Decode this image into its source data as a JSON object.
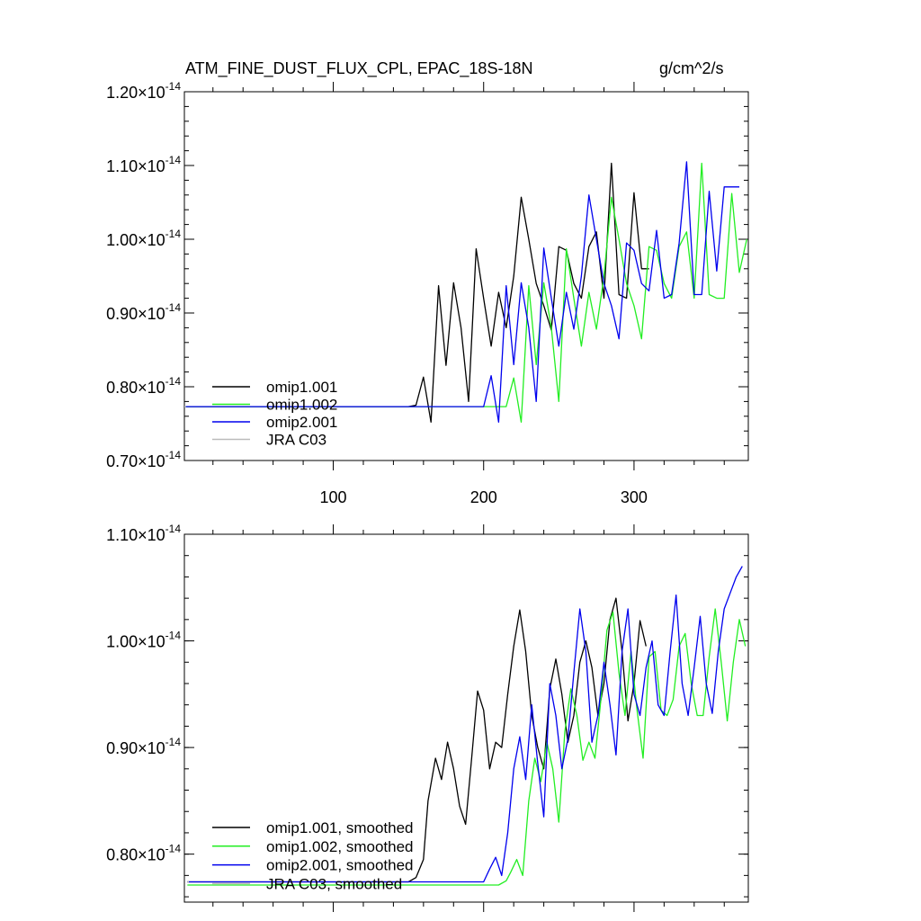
{
  "chart_data": [
    {
      "type": "line",
      "panel": "top",
      "title": "ATM_FINE_DUST_FLUX_CPL, EPAC_18S-18N",
      "units": "g/cm^2/s",
      "xlim": [
        1,
        376
      ],
      "ylim": [
        0.7,
        1.2
      ],
      "exponent": "-14",
      "yticks": [
        "0.70",
        "0.80",
        "0.90",
        "1.00",
        "1.10",
        "1.20"
      ],
      "yticks_values": [
        0.7,
        0.8,
        0.9,
        1.0,
        1.1,
        1.2
      ],
      "xticks": [
        "100",
        "200",
        "300"
      ],
      "xticks_values": [
        100,
        200,
        300
      ],
      "legend": [
        "omip1.001",
        "omip1.002",
        "omip2.001",
        "JRA C03"
      ],
      "colors": [
        "#000000",
        "#22ee22",
        "#0000ee",
        "#bbbbbb"
      ],
      "series": [
        {
          "name": "omip1.001",
          "x": [
            1,
            150,
            155,
            160,
            165,
            170,
            175,
            180,
            185,
            190,
            195,
            200,
            205,
            210,
            215,
            220,
            225,
            230,
            235,
            240,
            245,
            250,
            255,
            260,
            265,
            270,
            275,
            280,
            285,
            290,
            295,
            300,
            305,
            310
          ],
          "y": [
            0.773,
            0.773,
            0.775,
            0.813,
            0.752,
            0.937,
            0.829,
            0.941,
            0.88,
            0.78,
            0.987,
            0.92,
            0.855,
            0.928,
            0.88,
            0.95,
            1.057,
            1.0,
            0.94,
            0.91,
            0.877,
            0.99,
            0.985,
            0.94,
            0.92,
            0.99,
            1.01,
            0.92,
            1.103,
            0.925,
            0.92,
            1.063,
            0.96,
            0.96
          ]
        },
        {
          "name": "omip1.002",
          "x": [
            1,
            200,
            205,
            210,
            215,
            220,
            225,
            230,
            235,
            240,
            245,
            250,
            255,
            260,
            265,
            270,
            275,
            280,
            285,
            290,
            295,
            300,
            305,
            310,
            315,
            320,
            325,
            330,
            335,
            340,
            345,
            350,
            355,
            360,
            365,
            370,
            375
          ],
          "y": [
            0.773,
            0.773,
            0.773,
            0.773,
            0.773,
            0.812,
            0.752,
            0.937,
            0.83,
            0.941,
            0.88,
            0.78,
            0.987,
            0.92,
            0.855,
            0.928,
            0.878,
            0.95,
            1.057,
            1.0,
            0.94,
            0.91,
            0.865,
            0.99,
            0.985,
            0.94,
            0.92,
            0.99,
            1.01,
            0.92,
            1.103,
            0.925,
            0.92,
            0.92,
            1.062,
            0.955,
            1.0
          ]
        },
        {
          "name": "omip2.001",
          "x": [
            1,
            200,
            205,
            210,
            215,
            220,
            225,
            230,
            235,
            240,
            245,
            250,
            255,
            260,
            265,
            270,
            275,
            280,
            285,
            290,
            295,
            300,
            305,
            310,
            315,
            320,
            325,
            330,
            335,
            340,
            345,
            350,
            355,
            360,
            365,
            370
          ],
          "y": [
            0.773,
            0.773,
            0.815,
            0.752,
            0.937,
            0.83,
            0.941,
            0.88,
            0.78,
            0.988,
            0.92,
            0.855,
            0.928,
            0.878,
            0.95,
            1.06,
            1.0,
            0.94,
            0.91,
            0.865,
            0.995,
            0.985,
            0.94,
            0.93,
            1.012,
            0.92,
            0.925,
            0.995,
            1.105,
            0.925,
            0.925,
            1.065,
            0.957,
            1.071,
            1.071,
            1.071
          ]
        },
        {
          "name": "JRA C03",
          "x": [
            1,
            2
          ],
          "y": [
            0.773,
            0.773
          ]
        }
      ]
    },
    {
      "type": "line",
      "panel": "bottom",
      "xlim": [
        1,
        376
      ],
      "ylim": [
        0.755,
        1.1
      ],
      "exponent": "-14",
      "yticks": [
        "0.80",
        "0.90",
        "1.00",
        "1.10"
      ],
      "yticks_values": [
        0.8,
        0.9,
        1.0,
        1.1
      ],
      "xticks_values": [
        100,
        200,
        300
      ],
      "legend": [
        "omip1.001, smoothed",
        "omip1.002, smoothed",
        "omip2.001, smoothed",
        "JRA C03, smoothed"
      ],
      "colors": [
        "#000000",
        "#22ee22",
        "#0000ee",
        "#bbbbbb"
      ],
      "series": [
        {
          "name": "omip1.001, smoothed",
          "x": [
            3,
            150,
            155,
            160,
            163,
            168,
            172,
            176,
            180,
            184,
            188,
            192,
            196,
            200,
            204,
            208,
            212,
            216,
            220,
            224,
            228,
            232,
            236,
            240,
            244,
            248,
            252,
            256,
            260,
            264,
            268,
            272,
            276,
            280,
            284,
            288,
            292,
            296,
            300,
            304,
            308
          ],
          "y": [
            0.774,
            0.774,
            0.778,
            0.795,
            0.85,
            0.89,
            0.87,
            0.905,
            0.88,
            0.845,
            0.828,
            0.89,
            0.953,
            0.935,
            0.88,
            0.905,
            0.9,
            0.95,
            0.995,
            1.029,
            0.99,
            0.93,
            0.9,
            0.88,
            0.955,
            0.983,
            0.95,
            0.905,
            0.93,
            0.98,
            1.0,
            0.975,
            0.93,
            0.96,
            1.02,
            1.04,
            0.99,
            0.925,
            0.96,
            1.019,
            0.995
          ]
        },
        {
          "name": "omip1.002, smoothed",
          "x": [
            3,
            200,
            205,
            210,
            215,
            218,
            222,
            226,
            230,
            234,
            238,
            242,
            246,
            250,
            254,
            258,
            262,
            266,
            270,
            274,
            278,
            282,
            286,
            290,
            294,
            298,
            302,
            306,
            310,
            314,
            318,
            322,
            326,
            330,
            334,
            338,
            342,
            346,
            350,
            354,
            358,
            362,
            366,
            370,
            374
          ],
          "y": [
            0.771,
            0.771,
            0.771,
            0.771,
            0.775,
            0.783,
            0.795,
            0.78,
            0.85,
            0.89,
            0.868,
            0.905,
            0.88,
            0.83,
            0.915,
            0.955,
            0.93,
            0.888,
            0.905,
            0.89,
            0.945,
            1.01,
            1.027,
            0.97,
            0.93,
            0.99,
            0.935,
            0.89,
            0.985,
            0.99,
            0.935,
            0.93,
            0.945,
            0.995,
            1.007,
            0.96,
            0.93,
            0.93,
            0.985,
            1.03,
            0.98,
            0.925,
            0.98,
            1.02,
            0.995
          ]
        },
        {
          "name": "omip2.001, smoothed",
          "x": [
            3,
            200,
            204,
            208,
            212,
            216,
            220,
            224,
            228,
            232,
            236,
            240,
            244,
            248,
            252,
            256,
            260,
            264,
            268,
            272,
            276,
            280,
            284,
            288,
            292,
            296,
            300,
            304,
            308,
            312,
            316,
            320,
            324,
            328,
            332,
            336,
            340,
            344,
            348,
            352,
            356,
            360,
            364,
            368,
            372
          ],
          "y": [
            0.774,
            0.774,
            0.786,
            0.797,
            0.78,
            0.82,
            0.88,
            0.91,
            0.87,
            0.94,
            0.885,
            0.835,
            0.96,
            0.93,
            0.88,
            0.908,
            0.97,
            1.03,
            0.99,
            0.905,
            0.93,
            0.98,
            0.94,
            0.893,
            0.99,
            1.03,
            0.95,
            0.93,
            0.975,
            1.0,
            0.94,
            0.93,
            0.99,
            1.043,
            0.96,
            0.93,
            0.975,
            1.023,
            0.96,
            0.932,
            0.99,
            1.03,
            1.045,
            1.06,
            1.07
          ]
        },
        {
          "name": "JRA C03, smoothed",
          "x": [
            3,
            4
          ],
          "y": [
            0.774,
            0.774
          ]
        }
      ]
    }
  ]
}
